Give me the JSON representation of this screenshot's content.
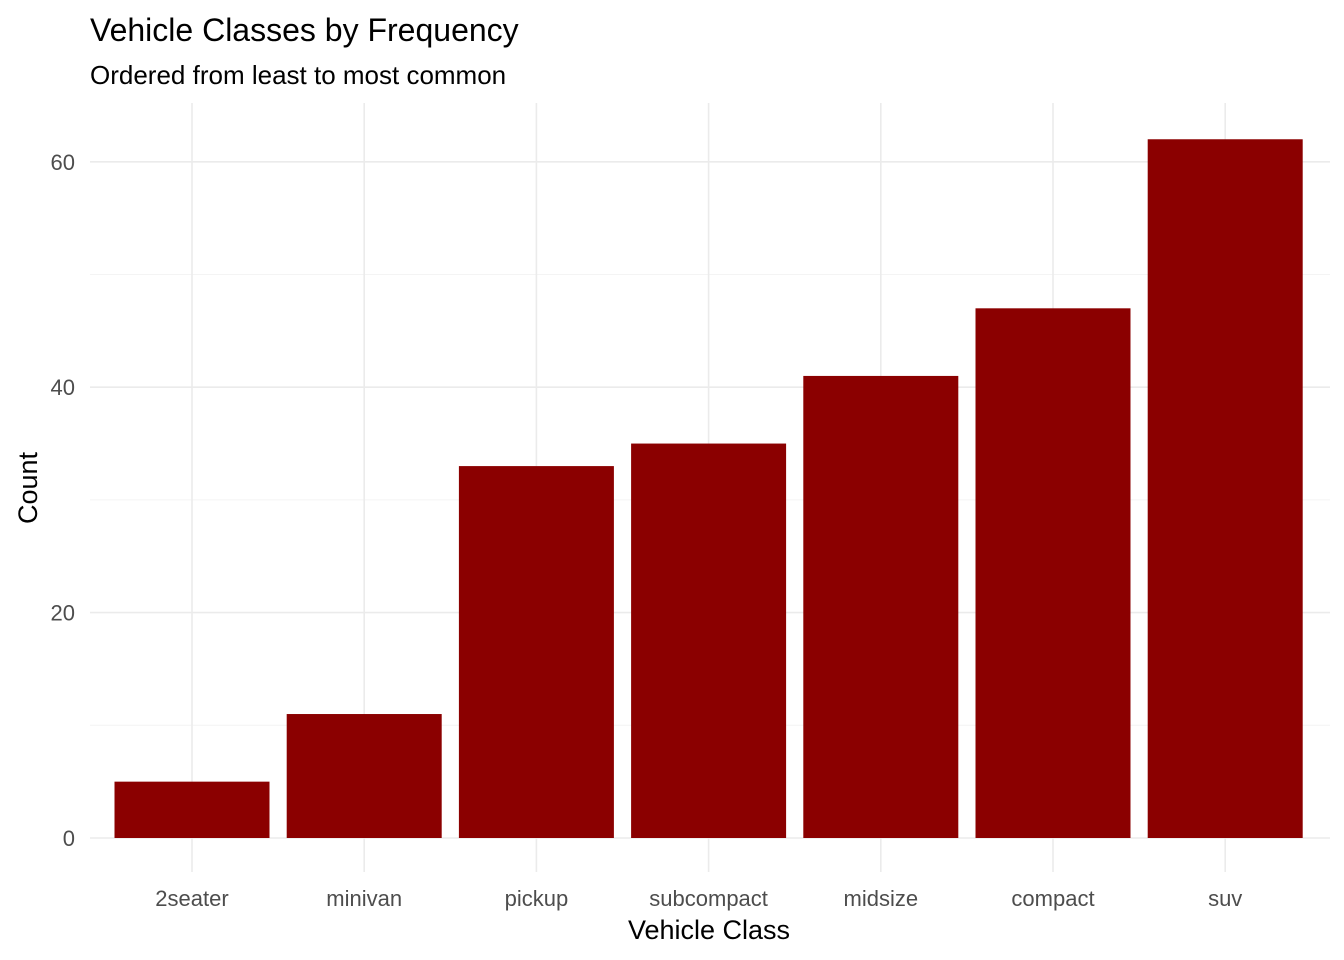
{
  "chart_data": {
    "type": "bar",
    "title": "Vehicle Classes by Frequency",
    "subtitle": "Ordered from least to most common",
    "xlabel": "Vehicle Class",
    "ylabel": "Count",
    "categories": [
      "2seater",
      "minivan",
      "pickup",
      "subcompact",
      "midsize",
      "compact",
      "suv"
    ],
    "values": [
      5,
      11,
      33,
      35,
      41,
      47,
      62
    ],
    "yticks": [
      0,
      20,
      40,
      60
    ],
    "ylim": [
      0,
      65
    ],
    "bar_color": "#8b0000",
    "grid": true,
    "legend": "none"
  }
}
